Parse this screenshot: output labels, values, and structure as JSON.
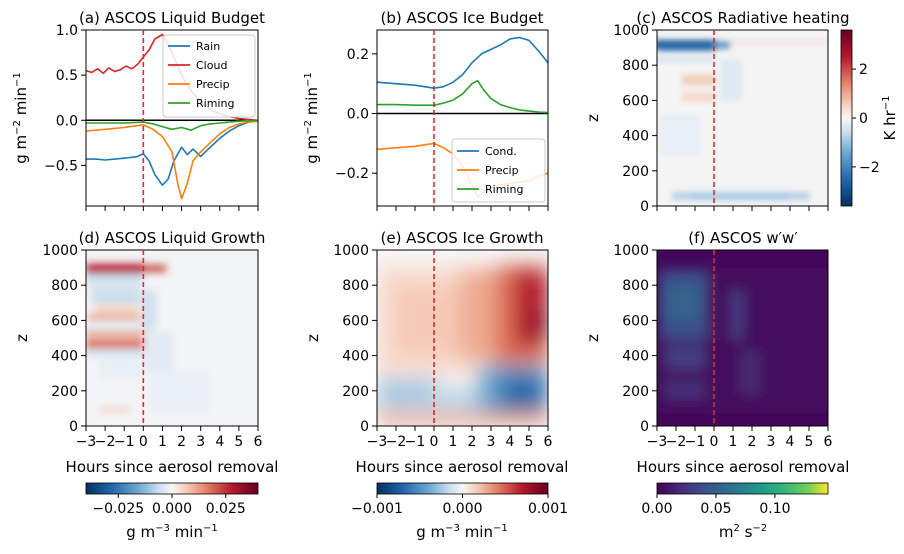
{
  "figure": {
    "hours_ticks": [
      "-3",
      "-2",
      "-1",
      "0",
      "1",
      "2",
      "3",
      "4",
      "5",
      "6"
    ],
    "hours_label": "Hours since aerosol removal",
    "removal_hour": 0,
    "colors": {
      "rain": "#1f77b4",
      "cloud": "#d62728",
      "precip": "#ff7f0e",
      "riming": "#2ca02c",
      "cond": "#1f77b4",
      "removal_line": "#e8262a"
    }
  },
  "chart_data": [
    {
      "id": "a",
      "type": "line",
      "title": "(a) ASCOS Liquid Budget",
      "ylabel": "g m$^{-2}$ min$^{-1}$",
      "ylabel_parts": [
        "g m",
        "−2",
        " min",
        "−1"
      ],
      "xlim": [
        -3,
        6
      ],
      "ylim": [
        -0.95,
        1.0
      ],
      "yticks": [
        "1.0",
        "0.5",
        "0.0",
        "−0.5"
      ],
      "ytick_values": [
        1.0,
        0.5,
        0.0,
        -0.5
      ],
      "zero_line": true,
      "legend": [
        "Rain",
        "Cloud",
        "Precip",
        "Riming"
      ],
      "legend_position": "top-right",
      "series": [
        {
          "name": "Rain",
          "color_key": "rain",
          "x": [
            -3,
            -2.5,
            -2,
            -1.5,
            -1,
            -0.6,
            -0.3,
            0,
            0.3,
            0.6,
            1,
            1.3,
            1.6,
            2,
            2.3,
            2.6,
            3,
            3.5,
            4,
            4.5,
            5,
            5.5,
            6
          ],
          "y": [
            -0.43,
            -0.43,
            -0.44,
            -0.43,
            -0.42,
            -0.41,
            -0.4,
            -0.37,
            -0.45,
            -0.6,
            -0.72,
            -0.65,
            -0.45,
            -0.3,
            -0.38,
            -0.32,
            -0.4,
            -0.3,
            -0.2,
            -0.12,
            -0.06,
            -0.02,
            -0.01
          ]
        },
        {
          "name": "Cloud",
          "color_key": "cloud",
          "x": [
            -3,
            -2.7,
            -2.4,
            -2.1,
            -1.8,
            -1.5,
            -1.2,
            -0.9,
            -0.6,
            -0.3,
            0,
            0.3,
            0.6,
            1,
            1.4,
            1.8,
            2.2,
            2.6,
            3,
            3.5,
            4,
            4.5,
            5,
            5.5,
            6
          ],
          "y": [
            0.55,
            0.53,
            0.57,
            0.52,
            0.58,
            0.54,
            0.56,
            0.6,
            0.57,
            0.62,
            0.7,
            0.78,
            0.9,
            0.95,
            0.8,
            0.6,
            0.42,
            0.3,
            0.2,
            0.12,
            0.07,
            0.04,
            0.02,
            0.01,
            0.0
          ]
        },
        {
          "name": "Precip",
          "color_key": "precip",
          "x": [
            -3,
            -2,
            -1,
            0,
            0.5,
            1,
            1.5,
            1.8,
            2,
            2.3,
            2.6,
            3,
            3.5,
            4,
            4.5,
            5,
            5.5,
            6
          ],
          "y": [
            -0.12,
            -0.1,
            -0.08,
            -0.05,
            -0.1,
            -0.18,
            -0.35,
            -0.7,
            -0.87,
            -0.7,
            -0.45,
            -0.35,
            -0.25,
            -0.15,
            -0.08,
            -0.04,
            -0.02,
            -0.01
          ]
        },
        {
          "name": "Riming",
          "color_key": "riming",
          "x": [
            -3,
            -2,
            -1,
            0,
            0.5,
            1,
            1.5,
            2,
            2.5,
            3,
            3.5,
            4,
            4.5,
            5,
            5.5,
            6
          ],
          "y": [
            -0.03,
            -0.03,
            -0.03,
            -0.02,
            -0.04,
            -0.07,
            -0.1,
            -0.08,
            -0.11,
            -0.06,
            -0.04,
            -0.03,
            -0.02,
            -0.01,
            -0.005,
            0.0
          ]
        }
      ]
    },
    {
      "id": "b",
      "type": "line",
      "title": "(b) ASCOS Ice Budget",
      "ylabel": "g m$^{-2}$ min$^{-1}$",
      "ylabel_parts": [
        "g m",
        "−2",
        " min",
        "−1"
      ],
      "xlim": [
        -3,
        6
      ],
      "ylim": [
        -0.31,
        0.28
      ],
      "yticks": [
        "0.2",
        "0.0",
        "−0.2"
      ],
      "ytick_values": [
        0.2,
        0.0,
        -0.2
      ],
      "zero_line": true,
      "legend": [
        "Cond.",
        "Precip",
        "Riming"
      ],
      "legend_position": "bottom-right",
      "series": [
        {
          "name": "Cond.",
          "color_key": "cond",
          "x": [
            -3,
            -2,
            -1,
            -0.5,
            0,
            0.5,
            1,
            1.5,
            2,
            2.5,
            3,
            3.5,
            4,
            4.5,
            5,
            5.5,
            6
          ],
          "y": [
            0.105,
            0.1,
            0.095,
            0.09,
            0.085,
            0.09,
            0.105,
            0.13,
            0.17,
            0.2,
            0.215,
            0.23,
            0.25,
            0.255,
            0.245,
            0.21,
            0.17
          ]
        },
        {
          "name": "Precip",
          "color_key": "precip",
          "x": [
            -3,
            -2,
            -1,
            -0.5,
            0,
            0.5,
            1,
            1.5,
            2,
            2.3,
            2.6,
            3,
            3.5,
            4,
            4.5,
            5,
            5.5,
            6
          ],
          "y": [
            -0.12,
            -0.115,
            -0.11,
            -0.105,
            -0.1,
            -0.115,
            -0.135,
            -0.175,
            -0.24,
            -0.28,
            -0.265,
            -0.25,
            -0.24,
            -0.235,
            -0.23,
            -0.225,
            -0.21,
            -0.2
          ]
        },
        {
          "name": "Riming",
          "color_key": "riming",
          "x": [
            -3,
            -2,
            -1,
            0,
            0.5,
            1,
            1.5,
            2,
            2.3,
            2.6,
            3,
            3.5,
            4,
            4.5,
            5,
            5.5,
            6
          ],
          "y": [
            0.03,
            0.03,
            0.028,
            0.028,
            0.035,
            0.045,
            0.065,
            0.1,
            0.11,
            0.08,
            0.05,
            0.03,
            0.02,
            0.012,
            0.008,
            0.005,
            0.003
          ]
        }
      ]
    },
    {
      "id": "c",
      "type": "heatmap",
      "title": "(c) ASCOS Radiative heating",
      "ylabel": "z",
      "yticks": [
        "1000",
        "800",
        "600",
        "400",
        "200",
        "0"
      ],
      "ytick_values": [
        1000,
        800,
        600,
        400,
        200,
        0
      ],
      "ylim": [
        0,
        1000
      ],
      "xlim": [
        -3,
        6
      ],
      "colorbar": {
        "label_parts": [
          "K hr",
          "−1"
        ],
        "ticks": [
          "2",
          "0",
          "−2"
        ],
        "tick_values": [
          2,
          0,
          -2
        ],
        "vmin": -3.6,
        "vmax": 3.6,
        "orientation": "vertical",
        "cmap": "RdBu_r"
      }
    },
    {
      "id": "d",
      "type": "heatmap",
      "title": "(d) ASCOS Liquid Growth",
      "ylabel": "z",
      "yticks": [
        "1000",
        "800",
        "600",
        "400",
        "200",
        "0"
      ],
      "ytick_values": [
        1000,
        800,
        600,
        400,
        200,
        0
      ],
      "ylim": [
        0,
        1000
      ],
      "xlim": [
        -3,
        6
      ],
      "colorbar": {
        "label_parts": [
          "g m",
          "−3",
          " min",
          "−1"
        ],
        "ticks": [
          "−0.025",
          "0.000",
          "0.025"
        ],
        "tick_values": [
          -0.025,
          0.0,
          0.025
        ],
        "vmin": -0.04,
        "vmax": 0.04,
        "orientation": "horizontal",
        "cmap": "RdBu_r"
      }
    },
    {
      "id": "e",
      "type": "heatmap",
      "title": "(e) ASCOS Ice Growth",
      "ylabel": "z",
      "yticks": [
        "1000",
        "800",
        "600",
        "400",
        "200",
        "0"
      ],
      "ytick_values": [
        1000,
        800,
        600,
        400,
        200,
        0
      ],
      "ylim": [
        0,
        1000
      ],
      "xlim": [
        -3,
        6
      ],
      "colorbar": {
        "label_parts": [
          "g m",
          "−3",
          " min",
          "−1"
        ],
        "ticks": [
          "−0.001",
          "0.000",
          "0.001"
        ],
        "tick_values": [
          -0.001,
          0.0,
          0.001
        ],
        "vmin": -0.001,
        "vmax": 0.001,
        "orientation": "horizontal",
        "cmap": "RdBu_r"
      }
    },
    {
      "id": "f",
      "type": "heatmap",
      "title": "(f) ASCOS w′w′",
      "ylabel": "z",
      "yticks": [
        "1000",
        "800",
        "600",
        "400",
        "200",
        "0"
      ],
      "ytick_values": [
        1000,
        800,
        600,
        400,
        200,
        0
      ],
      "ylim": [
        0,
        1000
      ],
      "xlim": [
        -3,
        6
      ],
      "colorbar": {
        "label_parts": [
          "m",
          "2",
          " s",
          "−2"
        ],
        "ticks": [
          "0.00",
          "0.05",
          "0.10"
        ],
        "tick_values": [
          0.0,
          0.05,
          0.1
        ],
        "vmin": 0.0,
        "vmax": 0.145,
        "orientation": "horizontal",
        "cmap": "viridis"
      }
    }
  ]
}
